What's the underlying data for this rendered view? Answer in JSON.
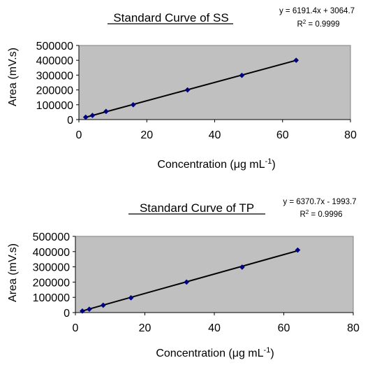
{
  "chart_data": [
    {
      "type": "scatter",
      "title": "Standard Curve of SS",
      "equation": "y = 6191.4x + 3064.7",
      "r2_prefix": "R",
      "r2_sup": "2",
      "r2_suffix": " = 0.9999",
      "xlabel": "Concentration (μg mL",
      "xlabel_sup": "-1",
      "xlabel_suffix": ")",
      "ylabel": "Area (mV.s)",
      "xlim": [
        0,
        80
      ],
      "ylim": [
        0,
        500000
      ],
      "xticks": [
        0,
        20,
        40,
        60,
        80
      ],
      "yticks": [
        0,
        100000,
        200000,
        300000,
        400000,
        500000
      ],
      "xtick_labels": [
        "0",
        "20",
        "40",
        "60",
        "80"
      ],
      "ytick_labels": [
        "0",
        "100000",
        "200000",
        "300000",
        "400000",
        "500000"
      ],
      "grid": false,
      "trendline": {
        "slope": 6191.4,
        "intercept": 3064.7
      },
      "series": [
        {
          "x": [
            2,
            4,
            8,
            16,
            32,
            48,
            64
          ],
          "y": [
            16000,
            28000,
            55000,
            100000,
            200000,
            298000,
            400000
          ]
        }
      ]
    },
    {
      "type": "scatter",
      "title": "Standard Curve of TP",
      "equation": "y = 6370.7x - 1993.7",
      "r2_prefix": "R",
      "r2_sup": "2",
      "r2_suffix": " = 0.9996",
      "xlabel": "Concentration (μg mL",
      "xlabel_sup": "-1",
      "xlabel_suffix": ")",
      "ylabel": "Area (mV.s)",
      "xlim": [
        0,
        80
      ],
      "ylim": [
        0,
        500000
      ],
      "xticks": [
        0,
        20,
        40,
        60,
        80
      ],
      "yticks": [
        0,
        100000,
        200000,
        300000,
        400000,
        500000
      ],
      "xtick_labels": [
        "0",
        "20",
        "40",
        "60",
        "80"
      ],
      "ytick_labels": [
        "0",
        "100000",
        "200000",
        "300000",
        "400000",
        "500000"
      ],
      "grid": false,
      "trendline": {
        "slope": 6370.7,
        "intercept": -1993.7
      },
      "series": [
        {
          "x": [
            2,
            4,
            8,
            16,
            32,
            48,
            64
          ],
          "y": [
            10000,
            22000,
            48000,
            97000,
            200000,
            298000,
            410000
          ]
        }
      ]
    }
  ],
  "colors": {
    "plot_bg": "#c0c0c0",
    "marker": "#000080",
    "line": "#000000"
  }
}
